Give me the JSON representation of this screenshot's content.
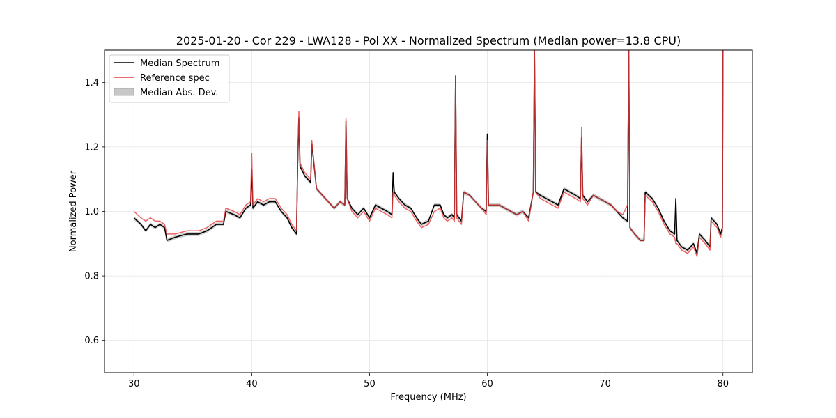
{
  "chart_data": {
    "type": "line",
    "title": "2025-01-20 - Cor 229 - LWA128 - Pol XX - Normalized Spectrum (Median power=13.8 CPU)",
    "xlabel": "Frequency (MHz)",
    "ylabel": "Normalized Power",
    "xlim": [
      27.5,
      82.5
    ],
    "ylim": [
      0.5,
      1.5
    ],
    "xticks": [
      30,
      40,
      50,
      60,
      70,
      80
    ],
    "yticks": [
      0.6,
      0.8,
      1.0,
      1.2,
      1.4
    ],
    "xtick_labels": [
      "30",
      "40",
      "50",
      "60",
      "70",
      "80"
    ],
    "ytick_labels": [
      "0.6",
      "0.8",
      "1.0",
      "1.2",
      "1.4"
    ],
    "grid": true,
    "legend_position": "top-left",
    "legend": [
      {
        "label": "Median Spectrum",
        "color": "#000000",
        "kind": "line"
      },
      {
        "label": "Reference spec",
        "color": "#e8393b",
        "kind": "line"
      },
      {
        "label": "Median Abs. Dev.",
        "color": "#bfbfbf",
        "kind": "patch"
      }
    ],
    "series": [
      {
        "name": "Median Spectrum",
        "color": "#000000",
        "x": [
          30.0,
          30.3,
          30.6,
          31.0,
          31.4,
          31.8,
          32.2,
          32.6,
          32.8,
          33.5,
          34.5,
          35.5,
          36.2,
          37.0,
          37.6,
          37.8,
          38.5,
          39.0,
          39.5,
          39.9,
          40.0,
          40.1,
          40.5,
          41.0,
          41.5,
          42.0,
          42.5,
          43.0,
          43.4,
          43.8,
          43.9,
          44.0,
          44.1,
          44.5,
          45.0,
          45.1,
          45.5,
          46.0,
          46.5,
          47.0,
          47.5,
          47.9,
          48.0,
          48.1,
          48.5,
          49.0,
          49.5,
          50.0,
          50.5,
          51.0,
          51.5,
          51.9,
          52.0,
          52.1,
          52.5,
          53.0,
          53.5,
          54.0,
          54.4,
          55.0,
          55.5,
          56.0,
          56.3,
          56.6,
          57.0,
          57.2,
          57.3,
          57.4,
          57.8,
          58.0,
          58.5,
          59.0,
          59.5,
          59.9,
          60.0,
          60.1,
          60.5,
          61.0,
          61.5,
          62.0,
          62.5,
          63.0,
          63.5,
          63.9,
          64.0,
          64.1,
          64.5,
          65.0,
          65.5,
          66.0,
          66.5,
          67.0,
          67.5,
          67.9,
          68.0,
          68.1,
          68.5,
          69.0,
          69.5,
          70.0,
          70.5,
          71.0,
          71.5,
          71.9,
          72.0,
          72.1,
          72.5,
          73.0,
          73.3,
          73.4,
          74.0,
          74.5,
          75.0,
          75.5,
          75.9,
          76.0,
          76.1,
          76.5,
          77.0,
          77.5,
          77.8,
          78.0,
          78.5,
          78.9,
          79.0,
          79.5,
          79.8,
          79.95,
          80.0
        ],
        "y": [
          0.98,
          0.97,
          0.96,
          0.94,
          0.96,
          0.95,
          0.96,
          0.95,
          0.91,
          0.92,
          0.93,
          0.93,
          0.94,
          0.96,
          0.96,
          1.0,
          0.99,
          0.98,
          1.01,
          1.02,
          1.13,
          1.01,
          1.03,
          1.02,
          1.03,
          1.03,
          1.0,
          0.98,
          0.95,
          0.93,
          1.15,
          1.29,
          1.14,
          1.11,
          1.09,
          1.21,
          1.07,
          1.05,
          1.03,
          1.01,
          1.03,
          1.02,
          1.28,
          1.04,
          1.01,
          0.99,
          1.01,
          0.98,
          1.02,
          1.01,
          1.0,
          0.99,
          1.12,
          1.06,
          1.04,
          1.02,
          1.01,
          0.98,
          0.96,
          0.97,
          1.02,
          1.02,
          0.99,
          0.98,
          0.99,
          0.98,
          1.42,
          0.99,
          0.97,
          1.06,
          1.05,
          1.03,
          1.01,
          1.0,
          1.24,
          1.02,
          1.02,
          1.02,
          1.01,
          1.0,
          0.99,
          1.0,
          0.98,
          1.06,
          1.5,
          1.06,
          1.05,
          1.04,
          1.03,
          1.02,
          1.07,
          1.06,
          1.05,
          1.04,
          1.23,
          1.05,
          1.03,
          1.05,
          1.04,
          1.03,
          1.02,
          1.0,
          0.98,
          0.97,
          1.5,
          0.95,
          0.93,
          0.91,
          0.91,
          1.06,
          1.04,
          1.01,
          0.97,
          0.94,
          0.93,
          1.04,
          0.91,
          0.89,
          0.88,
          0.9,
          0.87,
          0.93,
          0.91,
          0.89,
          0.98,
          0.96,
          0.93,
          0.95,
          1.5
        ]
      },
      {
        "name": "Reference spec",
        "color": "#e8393b",
        "x": [
          30.0,
          30.3,
          30.6,
          31.0,
          31.4,
          31.8,
          32.2,
          32.6,
          32.8,
          33.5,
          34.5,
          35.5,
          36.2,
          37.0,
          37.6,
          37.8,
          38.5,
          39.0,
          39.5,
          39.9,
          40.0,
          40.1,
          40.5,
          41.0,
          41.5,
          42.0,
          42.5,
          43.0,
          43.4,
          43.8,
          43.9,
          44.0,
          44.1,
          44.5,
          45.0,
          45.1,
          45.5,
          46.0,
          46.5,
          47.0,
          47.5,
          47.9,
          48.0,
          48.1,
          48.5,
          49.0,
          49.5,
          50.0,
          50.5,
          51.0,
          51.5,
          51.9,
          52.0,
          52.1,
          52.5,
          53.0,
          53.5,
          54.0,
          54.4,
          55.0,
          55.5,
          56.0,
          56.3,
          56.6,
          57.0,
          57.2,
          57.3,
          57.4,
          57.8,
          58.0,
          58.5,
          59.0,
          59.5,
          59.9,
          60.0,
          60.1,
          60.5,
          61.0,
          61.5,
          62.0,
          62.5,
          63.0,
          63.5,
          63.9,
          64.0,
          64.1,
          64.5,
          65.0,
          65.5,
          66.0,
          66.5,
          67.0,
          67.5,
          67.9,
          68.0,
          68.1,
          68.5,
          69.0,
          69.5,
          70.0,
          70.5,
          71.0,
          71.5,
          71.9,
          72.0,
          72.1,
          72.5,
          73.0,
          73.3,
          73.4,
          74.0,
          74.5,
          75.0,
          75.5,
          75.9,
          76.0,
          76.1,
          76.5,
          77.0,
          77.5,
          77.8,
          78.0,
          78.5,
          78.9,
          79.0,
          79.5,
          79.8,
          79.95,
          80.0
        ],
        "y": [
          1.0,
          0.99,
          0.98,
          0.97,
          0.98,
          0.97,
          0.97,
          0.96,
          0.93,
          0.93,
          0.94,
          0.94,
          0.95,
          0.97,
          0.97,
          1.01,
          1.0,
          0.99,
          1.02,
          1.03,
          1.18,
          1.02,
          1.04,
          1.03,
          1.04,
          1.04,
          1.01,
          0.99,
          0.96,
          0.94,
          1.16,
          1.31,
          1.15,
          1.12,
          1.1,
          1.22,
          1.07,
          1.05,
          1.03,
          1.01,
          1.03,
          1.02,
          1.29,
          1.04,
          1.0,
          0.98,
          1.0,
          0.97,
          1.01,
          1.0,
          0.99,
          0.98,
          1.06,
          1.05,
          1.03,
          1.01,
          1.0,
          0.97,
          0.95,
          0.96,
          1.0,
          1.01,
          0.98,
          0.97,
          0.98,
          0.97,
          1.42,
          0.98,
          0.96,
          1.06,
          1.05,
          1.03,
          1.01,
          0.99,
          1.22,
          1.02,
          1.02,
          1.02,
          1.01,
          1.0,
          0.99,
          1.0,
          0.97,
          1.06,
          1.5,
          1.06,
          1.04,
          1.03,
          1.02,
          1.01,
          1.06,
          1.05,
          1.04,
          1.03,
          1.26,
          1.04,
          1.02,
          1.05,
          1.04,
          1.03,
          1.02,
          1.0,
          0.99,
          1.02,
          1.5,
          0.95,
          0.93,
          0.91,
          0.91,
          1.05,
          1.03,
          1.0,
          0.96,
          0.93,
          0.92,
          0.9,
          0.9,
          0.88,
          0.87,
          0.89,
          0.86,
          0.92,
          0.9,
          0.88,
          0.97,
          0.95,
          0.92,
          0.94,
          1.5
        ]
      }
    ]
  }
}
